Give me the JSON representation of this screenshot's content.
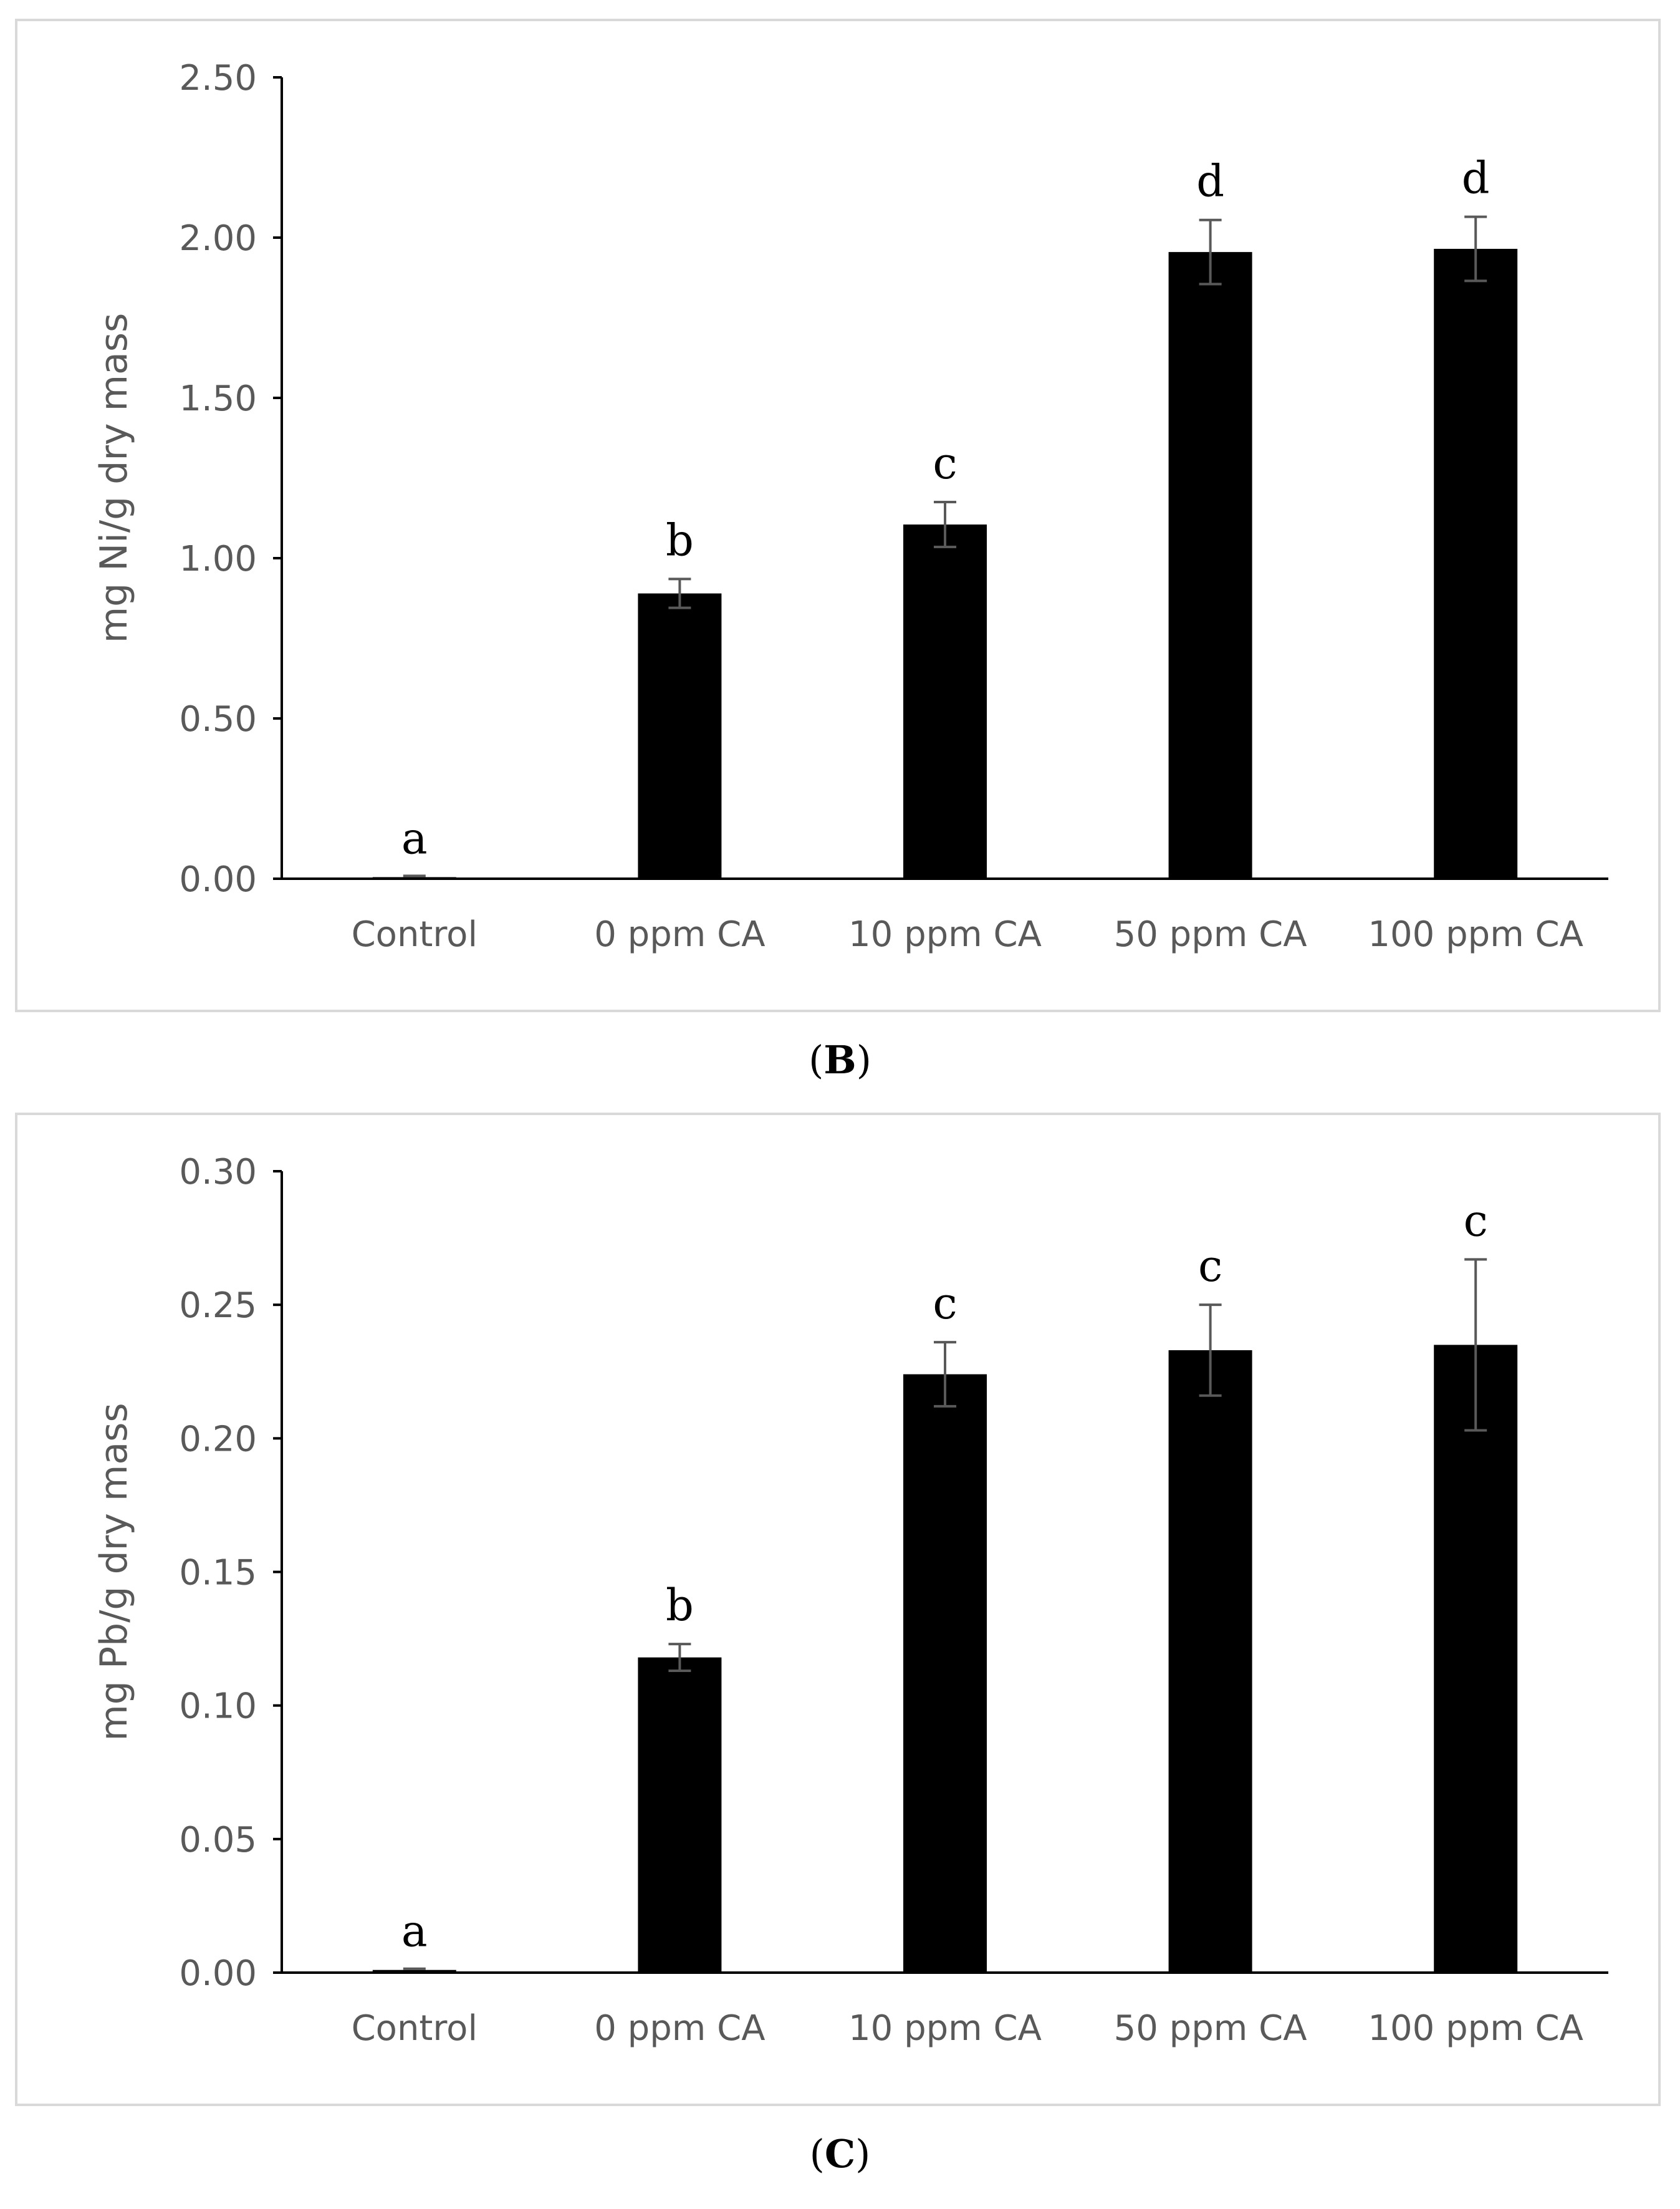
{
  "figure": {
    "panels": [
      {
        "id": "B",
        "caption_open": "(",
        "caption_letter": "B",
        "caption_close": ")"
      },
      {
        "id": "C",
        "caption_open": "(",
        "caption_letter": "C",
        "caption_close": ")"
      }
    ]
  },
  "chart_data": [
    {
      "type": "bar",
      "panel": "B",
      "title": "",
      "xlabel": "",
      "ylabel": "mg Ni/g  dry mass",
      "categories": [
        "Control",
        "0 ppm CA",
        "10 ppm CA",
        "50 ppm CA",
        "100 ppm CA"
      ],
      "values": [
        0.005,
        0.89,
        1.105,
        1.955,
        1.965
      ],
      "errors": [
        0.0,
        0.045,
        0.07,
        0.1,
        0.1
      ],
      "significance_labels": [
        "a",
        "b",
        "c",
        "d",
        "d"
      ],
      "ylim": [
        0,
        2.5
      ],
      "yticks": [
        "0.00",
        "0.50",
        "1.00",
        "1.50",
        "2.00",
        "2.50"
      ],
      "ytick_values": [
        0,
        0.5,
        1.0,
        1.5,
        2.0,
        2.5
      ],
      "bar_color": "#000000",
      "error_color": "#595959",
      "grid": false,
      "legend": "none"
    },
    {
      "type": "bar",
      "panel": "C",
      "title": "",
      "xlabel": "",
      "ylabel": "mg Pb/g dry mass",
      "categories": [
        "Control",
        "0 ppm CA",
        "10 ppm CA",
        "50 ppm CA",
        "100 ppm CA"
      ],
      "values": [
        0.001,
        0.118,
        0.224,
        0.233,
        0.235
      ],
      "errors": [
        0.0,
        0.005,
        0.012,
        0.017,
        0.032
      ],
      "significance_labels": [
        "a",
        "b",
        "c",
        "c",
        "c"
      ],
      "ylim": [
        0,
        0.3
      ],
      "yticks": [
        "0.00",
        "0.05",
        "0.10",
        "0.15",
        "0.20",
        "0.25",
        "0.30"
      ],
      "ytick_values": [
        0,
        0.05,
        0.1,
        0.15,
        0.2,
        0.25,
        0.3
      ],
      "bar_color": "#000000",
      "error_color": "#595959",
      "grid": false,
      "legend": "none"
    }
  ]
}
